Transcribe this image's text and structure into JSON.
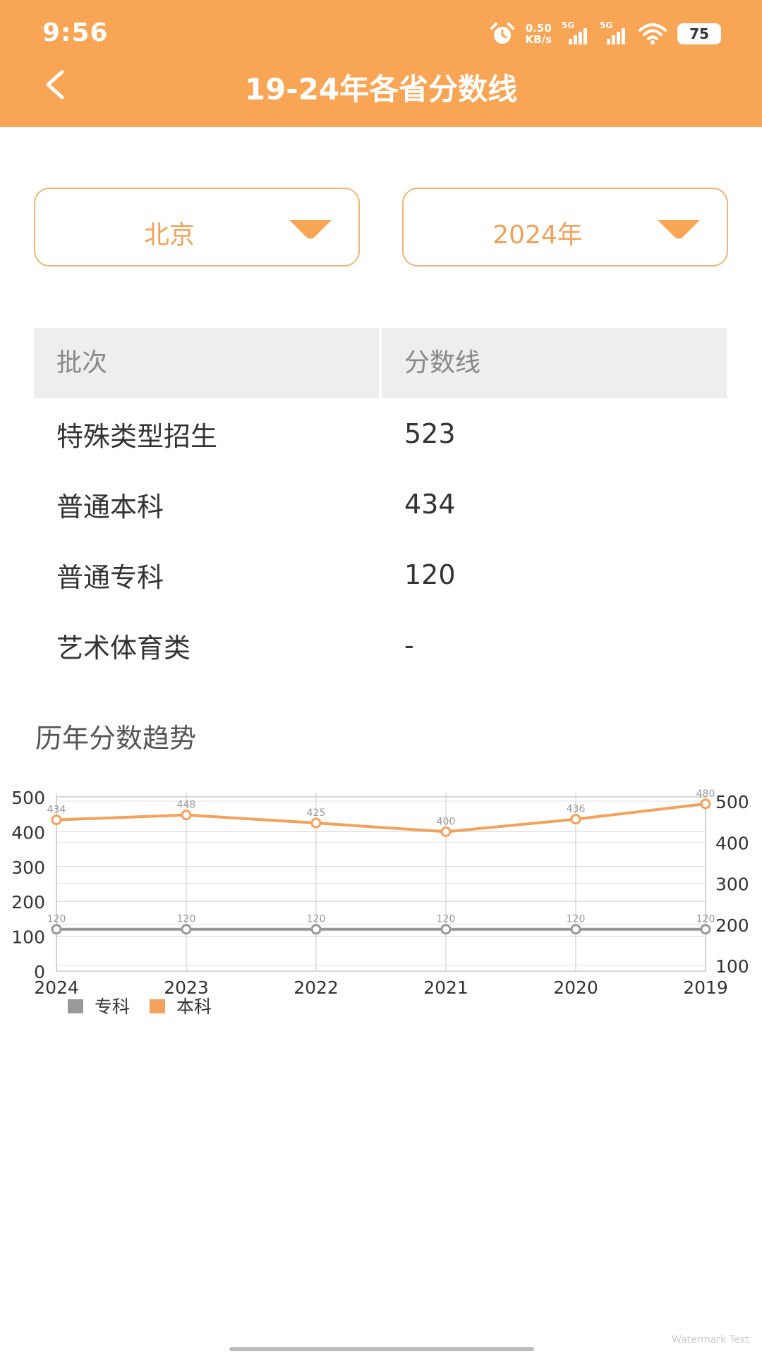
{
  "status": {
    "time": "9:56",
    "net_speed_value": "0.50",
    "net_speed_unit": "KB/s",
    "sim1": "5G",
    "sim2": "5G",
    "battery": "75"
  },
  "header": {
    "title": "19-24年各省分数线",
    "back_icon": "chevron-left-icon"
  },
  "filters": {
    "province": "北京",
    "year": "2024年"
  },
  "table": {
    "headers": [
      "批次",
      "分数线"
    ],
    "rows": [
      [
        "特殊类型招生",
        "523"
      ],
      [
        "普通本科",
        "434"
      ],
      [
        "普通专科",
        "120"
      ],
      [
        "艺术体育类",
        "-"
      ]
    ]
  },
  "trend": {
    "title": "历年分数趋势"
  },
  "colors": {
    "accent": "#F9A556",
    "benke": "#F3A15B",
    "zhuanke": "#999999"
  },
  "chart_data": {
    "type": "line",
    "categories": [
      "2024",
      "2023",
      "2022",
      "2021",
      "2020",
      "2019"
    ],
    "series": [
      {
        "name": "专科",
        "values": [
          120,
          120,
          120,
          120,
          120,
          120
        ],
        "color": "#999999"
      },
      {
        "name": "本科",
        "values": [
          434,
          448,
          425,
          400,
          436,
          480
        ],
        "color": "#F3A15B"
      }
    ],
    "left_ticks": [
      "0",
      "100",
      "200",
      "300",
      "400",
      "500"
    ],
    "right_ticks": [
      "100",
      "200",
      "300",
      "400",
      "500"
    ],
    "ylim": [
      0,
      500
    ],
    "grid": true,
    "legend_position": "bottom-left"
  },
  "watermark": "Watermark Text"
}
